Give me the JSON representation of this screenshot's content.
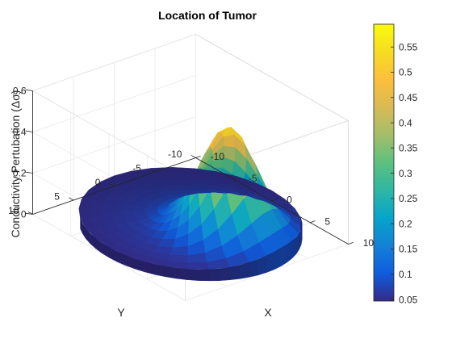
{
  "chart_data": {
    "type": "surface3d",
    "title": "Location of Tumor",
    "xlabel": "X",
    "ylabel": "Y",
    "zlabel": "Conductivity Pertubation (Δσ)",
    "xlim": [
      -10,
      10
    ],
    "ylim": [
      -10,
      10
    ],
    "zlim": [
      0,
      0.6
    ],
    "x_ticks": [
      "-10",
      "-5",
      "0",
      "5",
      "10"
    ],
    "y_ticks": [
      "-10",
      "-5",
      "0",
      "5",
      "10"
    ],
    "z_ticks": [
      "0",
      "0.2",
      "0.4",
      "0.6"
    ],
    "colormap": "parula",
    "clim": [
      0.047,
      0.595
    ],
    "colorbar_ticks": [
      "0.05",
      "0.1",
      "0.15",
      "0.2",
      "0.25",
      "0.3",
      "0.35",
      "0.4",
      "0.45",
      "0.5",
      "0.55"
    ],
    "grid": true,
    "domain": {
      "shape": "disk",
      "radius": 10
    },
    "tumor": {
      "x_center": 4,
      "y_center": -1,
      "radius": 4,
      "peak_value": 0.595,
      "background_value": 0.05
    }
  }
}
